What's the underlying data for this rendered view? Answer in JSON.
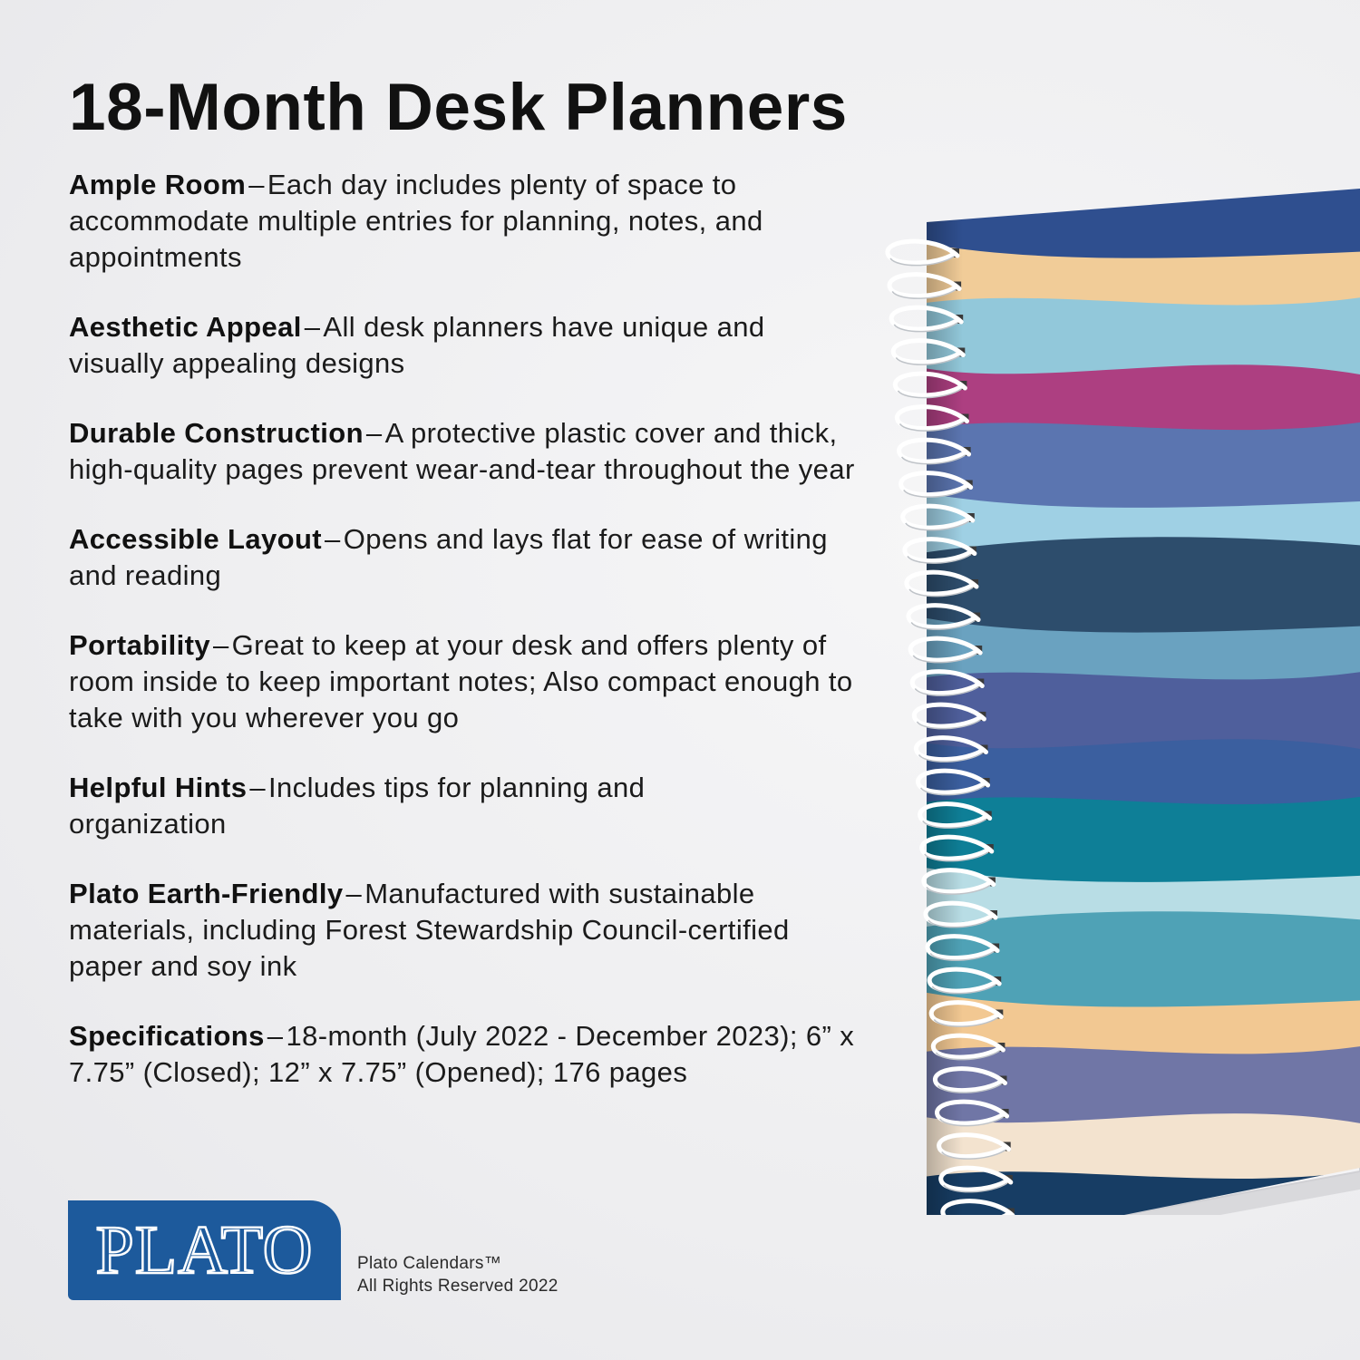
{
  "title": "18-Month Desk Planners",
  "separator": "–",
  "features": [
    {
      "name": "Ample Room",
      "text": "Each day includes plenty of space to accommodate multiple entries for planning, notes, and appointments"
    },
    {
      "name": "Aesthetic Appeal",
      "text": "All desk planners have unique and visually appealing designs"
    },
    {
      "name": "Durable Construction",
      "text": "A protective plastic cover and thick, high-quality pages prevent wear-and-tear throughout the year"
    },
    {
      "name": "Accessible Layout",
      "text": "Opens and lays flat for ease of writing and reading"
    },
    {
      "name": "Portability",
      "text": "Great to keep at your desk and offers plenty of room inside to keep important notes; Also compact enough to take with you wherever you go"
    },
    {
      "name": "Helpful Hints",
      "text": "Includes tips for planning and organization"
    },
    {
      "name": "Plato Earth-Friendly",
      "text": "Manufactured with sustainable materials, including Forest Stewardship Council-certified paper and soy ink"
    },
    {
      "name": "Specifications",
      "text": "18-month (July 2022 - December 2023); 6” x 7.75” (Closed); 12” x 7.75” (Opened); 176 pages"
    }
  ],
  "logo": {
    "text": "PLATO",
    "color": "#1d5a9c"
  },
  "copyright": {
    "line1": "Plato Calendars™",
    "line2": "All Rights Reserved 2022"
  },
  "planner_colors": [
    "#2f4f8f",
    "#f1cc98",
    "#92c8da",
    "#ad3f81",
    "#5b75b0",
    "#9fd0e4",
    "#2d4d6c",
    "#6aa2c0",
    "#4f5f9c",
    "#3b5f9f",
    "#0e7f97",
    "#b8dde5",
    "#4fa2b6",
    "#f2c892",
    "#7076a6",
    "#f3e3cf",
    "#173d64"
  ]
}
